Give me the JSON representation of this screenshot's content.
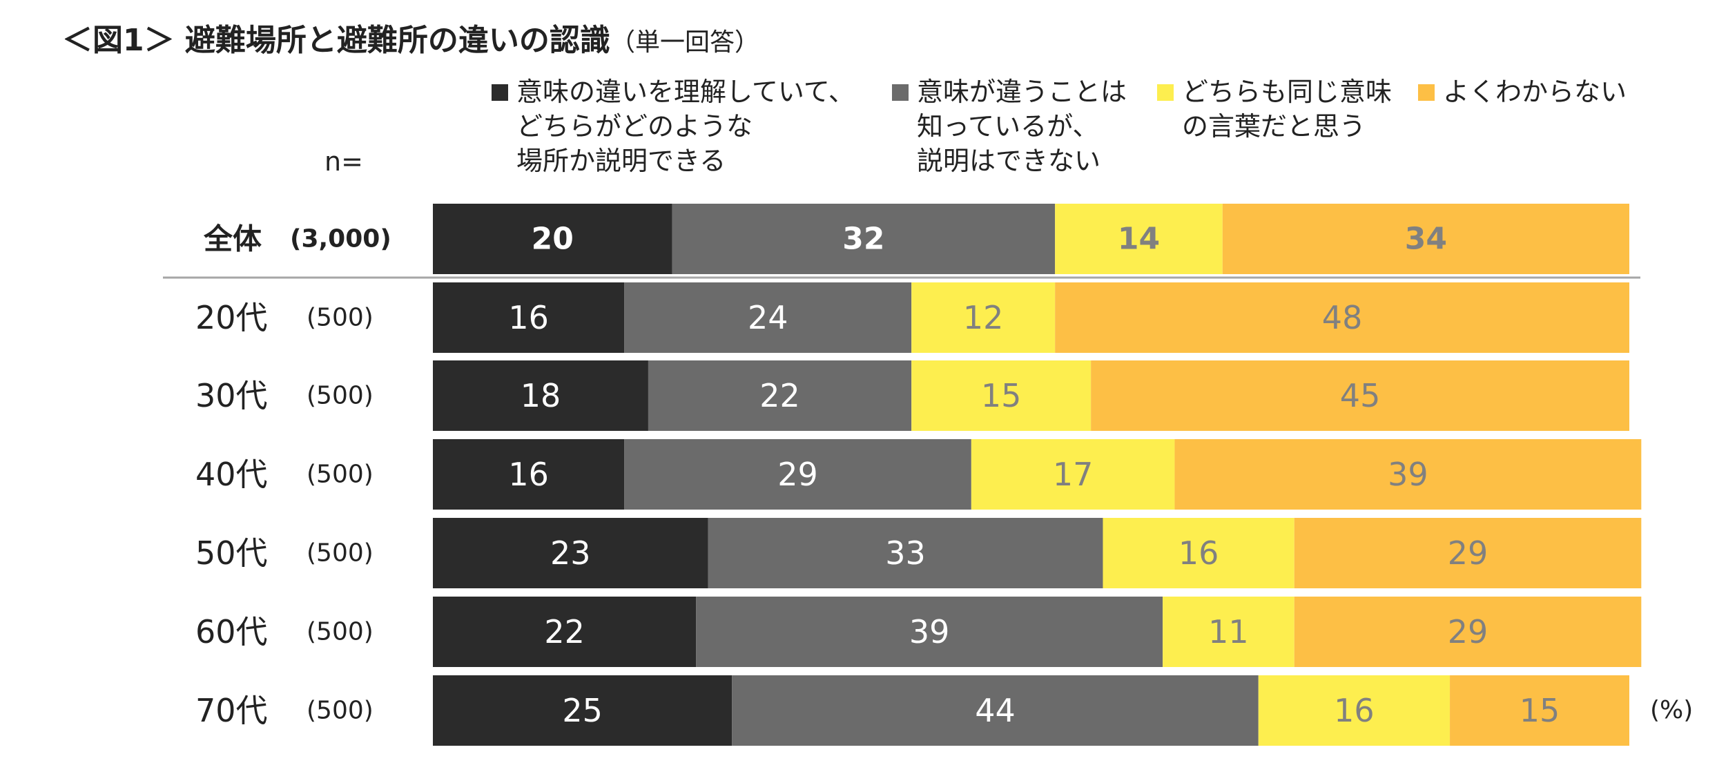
{
  "page": {
    "title": "＜図1＞ 避難場所と避難所の違いの認識",
    "title_note": "（単一回答）",
    "n_label": "n=",
    "unit": "(%)"
  },
  "chart_data": {
    "type": "bar",
    "orientation": "horizontal",
    "stacked": true,
    "title": "＜図1＞ 避難場所と避難所の違いの認識",
    "categories": [
      "全体",
      "20代",
      "30代",
      "40代",
      "50代",
      "60代",
      "70代"
    ],
    "sample_sizes": [
      "(3,000)",
      "(500)",
      "(500)",
      "(500)",
      "(500)",
      "(500)",
      "(500)"
    ],
    "series": [
      {
        "name": "意味の違いを理解していて、どちらがどのような場所か説明できる",
        "legend_lines": [
          "意味の違いを理解していて、",
          "どちらがどのような",
          "場所か説明できる"
        ],
        "color": "#2b2b2b",
        "label_color": "#ffffff",
        "values": [
          20,
          16,
          18,
          16,
          23,
          22,
          25
        ]
      },
      {
        "name": "意味が違うことは知っているが、説明はできない",
        "legend_lines": [
          "意味が違うことは",
          "知っているが、",
          "説明はできない"
        ],
        "color": "#6b6b6b",
        "label_color": "#ffffff",
        "values": [
          32,
          24,
          22,
          29,
          33,
          39,
          44
        ]
      },
      {
        "name": "どちらも同じ意味の言葉だと思う",
        "legend_lines": [
          "どちらも同じ意味",
          "の言葉だと思う"
        ],
        "color": "#fdee4f",
        "label_color": "#808080",
        "values": [
          14,
          12,
          15,
          17,
          16,
          11,
          16
        ]
      },
      {
        "name": "よくわからない",
        "legend_lines": [
          "よくわからない"
        ],
        "color": "#fdbf45",
        "label_color": "#808080",
        "values": [
          34,
          48,
          45,
          39,
          29,
          29,
          15
        ]
      }
    ],
    "xlim": [
      0,
      100
    ],
    "xlabel": "",
    "ylabel": "",
    "unit": "(%)",
    "legend": "top",
    "grid": false
  }
}
